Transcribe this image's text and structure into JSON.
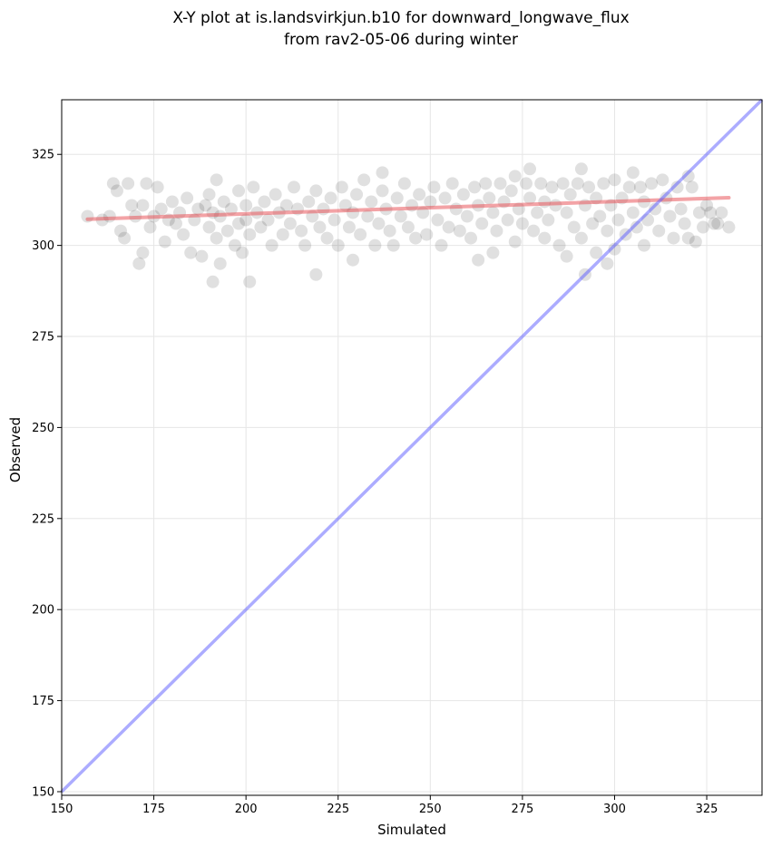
{
  "chart_data": {
    "type": "scatter",
    "title": "X-Y plot at is.landsvirkjun.b10 for downward_longwave_flux",
    "subtitle": "from rav2-05-06 during winter",
    "xlabel": "Simulated",
    "ylabel": "Observed",
    "xlim": [
      150,
      340
    ],
    "ylim": [
      149,
      340
    ],
    "xticks": [
      150,
      175,
      200,
      225,
      250,
      275,
      300,
      325
    ],
    "yticks": [
      150,
      175,
      200,
      225,
      250,
      275,
      300,
      325
    ],
    "grid": true,
    "colors": {
      "points": "#000000",
      "fit_line": "#e8474d",
      "identity_line": "#5a5aff"
    },
    "fit_line": {
      "x": [
        157,
        331
      ],
      "y": [
        307.2,
        313.1
      ]
    },
    "identity_line": {
      "x": [
        150,
        340
      ],
      "y": [
        150,
        340
      ]
    },
    "points": [
      [
        157,
        308
      ],
      [
        161,
        307
      ],
      [
        163,
        308
      ],
      [
        164,
        317
      ],
      [
        165,
        315
      ],
      [
        166,
        304
      ],
      [
        167,
        302
      ],
      [
        168,
        317
      ],
      [
        169,
        311
      ],
      [
        170,
        308
      ],
      [
        171,
        295
      ],
      [
        172,
        298
      ],
      [
        172,
        311
      ],
      [
        173,
        317
      ],
      [
        174,
        305
      ],
      [
        175,
        308
      ],
      [
        176,
        316
      ],
      [
        177,
        310
      ],
      [
        178,
        301
      ],
      [
        179,
        307
      ],
      [
        180,
        312
      ],
      [
        181,
        306
      ],
      [
        182,
        309
      ],
      [
        183,
        303
      ],
      [
        184,
        313
      ],
      [
        185,
        298
      ],
      [
        186,
        307
      ],
      [
        187,
        310
      ],
      [
        188,
        297
      ],
      [
        189,
        311
      ],
      [
        190,
        305
      ],
      [
        190,
        314
      ],
      [
        191,
        290
      ],
      [
        191,
        309
      ],
      [
        192,
        302
      ],
      [
        192,
        318
      ],
      [
        193,
        295
      ],
      [
        193,
        308
      ],
      [
        194,
        312
      ],
      [
        195,
        304
      ],
      [
        196,
        310
      ],
      [
        197,
        300
      ],
      [
        198,
        315
      ],
      [
        198,
        306
      ],
      [
        199,
        298
      ],
      [
        200,
        311
      ],
      [
        200,
        307
      ],
      [
        201,
        303
      ],
      [
        201,
        290
      ],
      [
        202,
        316
      ],
      [
        203,
        309
      ],
      [
        204,
        305
      ],
      [
        205,
        312
      ],
      [
        206,
        307
      ],
      [
        207,
        300
      ],
      [
        208,
        314
      ],
      [
        209,
        309
      ],
      [
        210,
        303
      ],
      [
        211,
        311
      ],
      [
        212,
        306
      ],
      [
        213,
        316
      ],
      [
        214,
        310
      ],
      [
        215,
        304
      ],
      [
        216,
        300
      ],
      [
        217,
        312
      ],
      [
        218,
        308
      ],
      [
        219,
        292
      ],
      [
        219,
        315
      ],
      [
        220,
        305
      ],
      [
        221,
        310
      ],
      [
        222,
        302
      ],
      [
        223,
        313
      ],
      [
        224,
        307
      ],
      [
        225,
        300
      ],
      [
        226,
        316
      ],
      [
        227,
        311
      ],
      [
        228,
        305
      ],
      [
        229,
        296
      ],
      [
        229,
        309
      ],
      [
        230,
        314
      ],
      [
        231,
        303
      ],
      [
        232,
        318
      ],
      [
        233,
        308
      ],
      [
        234,
        312
      ],
      [
        235,
        300
      ],
      [
        236,
        306
      ],
      [
        237,
        315
      ],
      [
        237,
        320
      ],
      [
        238,
        310
      ],
      [
        239,
        304
      ],
      [
        240,
        300
      ],
      [
        241,
        313
      ],
      [
        242,
        308
      ],
      [
        243,
        317
      ],
      [
        244,
        305
      ],
      [
        245,
        311
      ],
      [
        246,
        302
      ],
      [
        247,
        314
      ],
      [
        248,
        309
      ],
      [
        249,
        303
      ],
      [
        250,
        312
      ],
      [
        251,
        316
      ],
      [
        252,
        307
      ],
      [
        253,
        300
      ],
      [
        254,
        313
      ],
      [
        255,
        305
      ],
      [
        256,
        317
      ],
      [
        257,
        310
      ],
      [
        258,
        304
      ],
      [
        259,
        314
      ],
      [
        260,
        308
      ],
      [
        261,
        302
      ],
      [
        262,
        316
      ],
      [
        263,
        296
      ],
      [
        263,
        311
      ],
      [
        264,
        306
      ],
      [
        265,
        317
      ],
      [
        266,
        313
      ],
      [
        267,
        298
      ],
      [
        267,
        309
      ],
      [
        268,
        304
      ],
      [
        269,
        317
      ],
      [
        270,
        312
      ],
      [
        271,
        307
      ],
      [
        272,
        315
      ],
      [
        273,
        301
      ],
      [
        273,
        319
      ],
      [
        274,
        310
      ],
      [
        275,
        306
      ],
      [
        276,
        317
      ],
      [
        277,
        321
      ],
      [
        277,
        313
      ],
      [
        278,
        304
      ],
      [
        279,
        309
      ],
      [
        280,
        317
      ],
      [
        281,
        302
      ],
      [
        281,
        312
      ],
      [
        282,
        307
      ],
      [
        283,
        316
      ],
      [
        284,
        311
      ],
      [
        285,
        300
      ],
      [
        286,
        317
      ],
      [
        287,
        297
      ],
      [
        287,
        309
      ],
      [
        288,
        314
      ],
      [
        289,
        305
      ],
      [
        290,
        317
      ],
      [
        291,
        321
      ],
      [
        291,
        302
      ],
      [
        292,
        292
      ],
      [
        292,
        311
      ],
      [
        293,
        316
      ],
      [
        294,
        306
      ],
      [
        295,
        298
      ],
      [
        295,
        313
      ],
      [
        296,
        308
      ],
      [
        297,
        317
      ],
      [
        298,
        295
      ],
      [
        298,
        304
      ],
      [
        299,
        311
      ],
      [
        300,
        299
      ],
      [
        300,
        318
      ],
      [
        301,
        307
      ],
      [
        302,
        313
      ],
      [
        303,
        303
      ],
      [
        304,
        316
      ],
      [
        305,
        320
      ],
      [
        305,
        309
      ],
      [
        306,
        305
      ],
      [
        307,
        316
      ],
      [
        308,
        312
      ],
      [
        308,
        300
      ],
      [
        309,
        307
      ],
      [
        310,
        317
      ],
      [
        311,
        310
      ],
      [
        312,
        304
      ],
      [
        313,
        318
      ],
      [
        314,
        313
      ],
      [
        315,
        308
      ],
      [
        316,
        302
      ],
      [
        317,
        316
      ],
      [
        318,
        310
      ],
      [
        319,
        306
      ],
      [
        320,
        302
      ],
      [
        320,
        319
      ],
      [
        321,
        316
      ],
      [
        322,
        301
      ],
      [
        323,
        309
      ],
      [
        324,
        305
      ],
      [
        325,
        311
      ],
      [
        326,
        309
      ],
      [
        327,
        306
      ],
      [
        328,
        306
      ],
      [
        329,
        309
      ],
      [
        331,
        305
      ]
    ]
  }
}
